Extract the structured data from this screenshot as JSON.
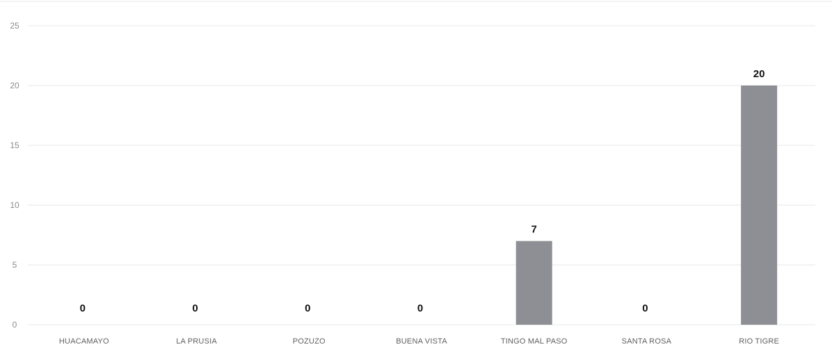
{
  "chart_data": {
    "type": "bar",
    "categories": [
      "HUACAMAYO",
      "LA PRUSIA",
      "POZUZO",
      "BUENA VISTA",
      "TINGO MAL PASO",
      "SANTA ROSA",
      "RIO TIGRE"
    ],
    "values": [
      0,
      0,
      0,
      0,
      7,
      0,
      20
    ],
    "data_labels": [
      "0",
      "0",
      "0",
      "0",
      "7",
      "0",
      "20"
    ],
    "y_ticks": [
      "0",
      "5",
      "10",
      "15",
      "20",
      "25"
    ],
    "ylim": [
      0,
      25
    ],
    "grid": true,
    "legend": "none"
  },
  "colors": {
    "bar": "#8d8f94",
    "grid": "#e7e7e7",
    "tick_text": "#8b8b8b",
    "category_text": "#5f5f5f",
    "data_label": "#111111"
  }
}
